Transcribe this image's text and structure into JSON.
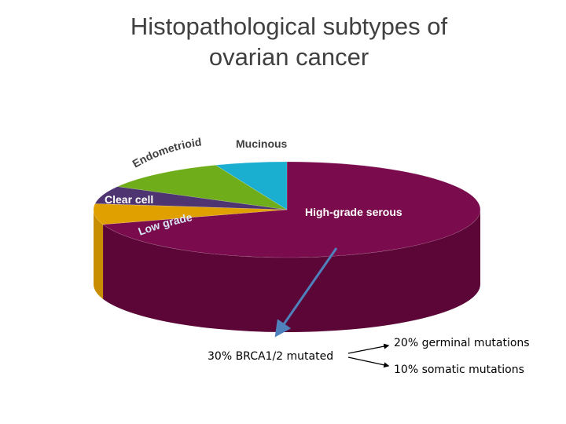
{
  "chart_data": {
    "type": "pie",
    "title_lines": [
      "Histopathological subtypes of",
      "ovarian cancer"
    ],
    "categories": [
      "High-grade serous",
      "Low grade",
      "Clear cell",
      "Endometrioid",
      "Mucinous"
    ],
    "values": [
      70,
      7,
      6,
      11,
      6
    ],
    "colors": [
      "#7a0b4c",
      "#e0a000",
      "#4e3470",
      "#6fad1a",
      "#1aaed0"
    ],
    "side_colors": [
      "#5c0638",
      "#c98e00",
      "#3a2656",
      "#578a12",
      "#138fae"
    ],
    "annotations": {
      "main": "30% BRCA1/2 mutated",
      "germinal": "20% germinal mutations",
      "somatic": "10% somatic mutations"
    }
  }
}
